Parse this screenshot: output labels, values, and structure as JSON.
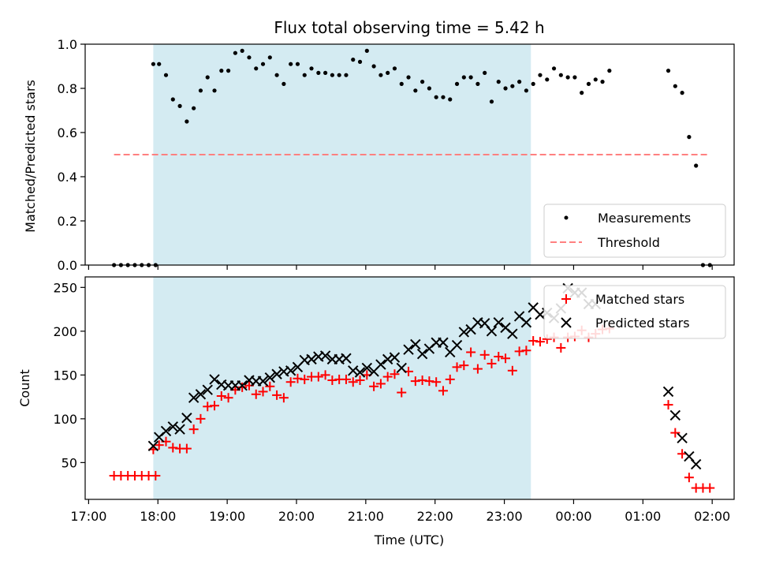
{
  "chart_data": [
    {
      "type": "scatter",
      "title": "Flux total observing time = 5.42 h",
      "ylabel": "Matched/Predicted stars",
      "xlabel": "",
      "x_axis": "time",
      "x_ticks": [
        "17:00",
        "18:00",
        "19:00",
        "20:00",
        "21:00",
        "22:00",
        "23:00",
        "00:00",
        "01:00",
        "02:00"
      ],
      "xlim": [
        "16:57",
        "02:19"
      ],
      "ylim": [
        0,
        1.0
      ],
      "y_ticks": [
        "0.0",
        "0.2",
        "0.4",
        "0.6",
        "0.8",
        "1.0"
      ],
      "shaded_span": [
        "17:56",
        "23:23"
      ],
      "legend_position": "lower right",
      "series": [
        {
          "name": "Measurements",
          "marker": "dot",
          "color": "#000000",
          "points": [
            [
              "17:22",
              0.0
            ],
            [
              "17:28",
              0.0
            ],
            [
              "17:34",
              0.0
            ],
            [
              "17:40",
              0.0
            ],
            [
              "17:46",
              0.0
            ],
            [
              "17:52",
              0.0
            ],
            [
              "17:58",
              0.0
            ],
            [
              "17:56",
              0.91
            ],
            [
              "18:01",
              0.91
            ],
            [
              "18:07",
              0.86
            ],
            [
              "18:13",
              0.75
            ],
            [
              "18:19",
              0.72
            ],
            [
              "18:25",
              0.65
            ],
            [
              "18:31",
              0.71
            ],
            [
              "18:37",
              0.79
            ],
            [
              "18:43",
              0.85
            ],
            [
              "18:49",
              0.79
            ],
            [
              "18:55",
              0.88
            ],
            [
              "19:01",
              0.88
            ],
            [
              "19:07",
              0.96
            ],
            [
              "19:13",
              0.97
            ],
            [
              "19:19",
              0.94
            ],
            [
              "19:25",
              0.89
            ],
            [
              "19:31",
              0.91
            ],
            [
              "19:37",
              0.94
            ],
            [
              "19:43",
              0.86
            ],
            [
              "19:49",
              0.82
            ],
            [
              "19:55",
              0.91
            ],
            [
              "20:01",
              0.91
            ],
            [
              "20:07",
              0.86
            ],
            [
              "20:13",
              0.89
            ],
            [
              "20:19",
              0.87
            ],
            [
              "20:25",
              0.87
            ],
            [
              "20:31",
              0.86
            ],
            [
              "20:37",
              0.86
            ],
            [
              "20:43",
              0.86
            ],
            [
              "20:49",
              0.93
            ],
            [
              "20:55",
              0.92
            ],
            [
              "21:01",
              0.97
            ],
            [
              "21:07",
              0.9
            ],
            [
              "21:13",
              0.86
            ],
            [
              "21:19",
              0.87
            ],
            [
              "21:25",
              0.89
            ],
            [
              "21:31",
              0.82
            ],
            [
              "21:37",
              0.85
            ],
            [
              "21:43",
              0.79
            ],
            [
              "21:49",
              0.83
            ],
            [
              "21:55",
              0.8
            ],
            [
              "22:01",
              0.76
            ],
            [
              "22:07",
              0.76
            ],
            [
              "22:13",
              0.75
            ],
            [
              "22:19",
              0.82
            ],
            [
              "22:25",
              0.85
            ],
            [
              "22:31",
              0.85
            ],
            [
              "22:37",
              0.82
            ],
            [
              "22:43",
              0.87
            ],
            [
              "22:49",
              0.74
            ],
            [
              "22:55",
              0.83
            ],
            [
              "23:01",
              0.8
            ],
            [
              "23:07",
              0.81
            ],
            [
              "23:13",
              0.83
            ],
            [
              "23:19",
              0.79
            ],
            [
              "23:25",
              0.82
            ],
            [
              "23:31",
              0.86
            ],
            [
              "23:37",
              0.84
            ],
            [
              "23:43",
              0.89
            ],
            [
              "23:49",
              0.86
            ],
            [
              "23:55",
              0.85
            ],
            [
              "24:01",
              0.85
            ],
            [
              "24:07",
              0.78
            ],
            [
              "24:13",
              0.82
            ],
            [
              "24:19",
              0.84
            ],
            [
              "24:25",
              0.83
            ],
            [
              "24:31",
              0.88
            ],
            [
              "25:22",
              0.88
            ],
            [
              "25:28",
              0.81
            ],
            [
              "25:34",
              0.78
            ],
            [
              "25:40",
              0.58
            ],
            [
              "25:46",
              0.45
            ],
            [
              "25:52",
              0.0
            ],
            [
              "25:58",
              0.0
            ]
          ]
        },
        {
          "name": "Threshold",
          "marker": "dashed-line",
          "color": "#ff8080",
          "points": [
            [
              "17:22",
              0.5
            ],
            [
              "25:58",
              0.5
            ]
          ]
        }
      ]
    },
    {
      "type": "scatter",
      "title": "",
      "ylabel": "Count",
      "xlabel": "Time (UTC)",
      "x_axis": "time",
      "x_ticks": [
        "17:00",
        "18:00",
        "19:00",
        "20:00",
        "21:00",
        "22:00",
        "23:00",
        "00:00",
        "01:00",
        "02:00"
      ],
      "xlim": [
        "16:57",
        "02:19"
      ],
      "ylim": [
        8,
        262
      ],
      "y_ticks": [
        "50",
        "100",
        "150",
        "200",
        "250"
      ],
      "shaded_span": [
        "17:56",
        "23:23"
      ],
      "legend_position": "upper right",
      "series": [
        {
          "name": "Matched stars",
          "marker": "plus",
          "color": "#ff0000",
          "points": [
            [
              "17:22",
              35
            ],
            [
              "17:28",
              35
            ],
            [
              "17:34",
              35
            ],
            [
              "17:40",
              35
            ],
            [
              "17:46",
              35
            ],
            [
              "17:52",
              35
            ],
            [
              "17:58",
              35
            ],
            [
              "17:56",
              65
            ],
            [
              "18:01",
              70
            ],
            [
              "18:07",
              74
            ],
            [
              "18:13",
              67
            ],
            [
              "18:19",
              66
            ],
            [
              "18:25",
              66
            ],
            [
              "18:31",
              88
            ],
            [
              "18:37",
              100
            ],
            [
              "18:43",
              114
            ],
            [
              "18:49",
              115
            ],
            [
              "18:55",
              126
            ],
            [
              "19:01",
              124
            ],
            [
              "19:07",
              133
            ],
            [
              "19:13",
              136
            ],
            [
              "19:19",
              138
            ],
            [
              "19:25",
              128
            ],
            [
              "19:31",
              131
            ],
            [
              "19:37",
              137
            ],
            [
              "19:43",
              127
            ],
            [
              "19:49",
              124
            ],
            [
              "19:55",
              142
            ],
            [
              "20:01",
              146
            ],
            [
              "20:07",
              145
            ],
            [
              "20:13",
              148
            ],
            [
              "20:19",
              148
            ],
            [
              "20:25",
              150
            ],
            [
              "20:31",
              144
            ],
            [
              "20:37",
              145
            ],
            [
              "20:43",
              145
            ],
            [
              "20:49",
              142
            ],
            [
              "20:55",
              144
            ],
            [
              "21:01",
              150
            ],
            [
              "21:07",
              137
            ],
            [
              "21:13",
              140
            ],
            [
              "21:19",
              148
            ],
            [
              "21:25",
              151
            ],
            [
              "21:31",
              130
            ],
            [
              "21:37",
              154
            ],
            [
              "21:43",
              143
            ],
            [
              "21:49",
              144
            ],
            [
              "21:55",
              143
            ],
            [
              "22:01",
              142
            ],
            [
              "22:07",
              132
            ],
            [
              "22:13",
              145
            ],
            [
              "22:19",
              159
            ],
            [
              "22:25",
              161
            ],
            [
              "22:31",
              176
            ],
            [
              "22:37",
              157
            ],
            [
              "22:43",
              173
            ],
            [
              "22:49",
              163
            ],
            [
              "22:55",
              171
            ],
            [
              "23:01",
              169
            ],
            [
              "23:07",
              155
            ],
            [
              "23:13",
              177
            ],
            [
              "23:19",
              178
            ],
            [
              "23:25",
              189
            ],
            [
              "23:31",
              188
            ],
            [
              "23:37",
              191
            ],
            [
              "23:43",
              193
            ],
            [
              "23:49",
              181
            ],
            [
              "23:55",
              193
            ],
            [
              "24:01",
              194
            ],
            [
              "24:07",
              201
            ],
            [
              "24:13",
              193
            ],
            [
              "24:19",
              197
            ],
            [
              "24:25",
              202
            ],
            [
              "24:31",
              203
            ],
            [
              "25:22",
              116
            ],
            [
              "25:28",
              84
            ],
            [
              "25:34",
              60
            ],
            [
              "25:40",
              33
            ],
            [
              "25:46",
              21
            ],
            [
              "25:52",
              21
            ],
            [
              "25:58",
              21
            ]
          ]
        },
        {
          "name": "Predicted stars",
          "marker": "x",
          "color": "#000000",
          "points": [
            [
              "17:56",
              69
            ],
            [
              "18:01",
              79
            ],
            [
              "18:07",
              86
            ],
            [
              "18:13",
              91
            ],
            [
              "18:19",
              88
            ],
            [
              "18:25",
              101
            ],
            [
              "18:31",
              124
            ],
            [
              "18:37",
              128
            ],
            [
              "18:43",
              133
            ],
            [
              "18:49",
              145
            ],
            [
              "18:55",
              139
            ],
            [
              "19:01",
              138
            ],
            [
              "19:07",
              138
            ],
            [
              "19:13",
              138
            ],
            [
              "19:19",
              144
            ],
            [
              "19:25",
              143
            ],
            [
              "19:31",
              143
            ],
            [
              "19:37",
              147
            ],
            [
              "19:43",
              151
            ],
            [
              "19:49",
              154
            ],
            [
              "19:55",
              155
            ],
            [
              "20:01",
              159
            ],
            [
              "20:07",
              167
            ],
            [
              "20:13",
              168
            ],
            [
              "20:19",
              171
            ],
            [
              "20:25",
              172
            ],
            [
              "20:31",
              168
            ],
            [
              "20:37",
              168
            ],
            [
              "20:43",
              169
            ],
            [
              "20:49",
              155
            ],
            [
              "20:55",
              153
            ],
            [
              "21:01",
              158
            ],
            [
              "21:07",
              154
            ],
            [
              "21:13",
              162
            ],
            [
              "21:19",
              168
            ],
            [
              "21:25",
              170
            ],
            [
              "21:31",
              158
            ],
            [
              "21:37",
              179
            ],
            [
              "21:43",
              185
            ],
            [
              "21:49",
              174
            ],
            [
              "21:55",
              180
            ],
            [
              "22:01",
              187
            ],
            [
              "22:07",
              187
            ],
            [
              "22:13",
              176
            ],
            [
              "22:19",
              184
            ],
            [
              "22:25",
              199
            ],
            [
              "22:31",
              202
            ],
            [
              "22:37",
              210
            ],
            [
              "22:43",
              209
            ],
            [
              "22:49",
              200
            ],
            [
              "22:55",
              210
            ],
            [
              "23:01",
              204
            ],
            [
              "23:07",
              197
            ],
            [
              "23:13",
              217
            ],
            [
              "23:19",
              210
            ],
            [
              "23:25",
              227
            ],
            [
              "23:31",
              219
            ],
            [
              "23:37",
              221
            ],
            [
              "23:43",
              215
            ],
            [
              "23:49",
              226
            ],
            [
              "23:55",
              249
            ],
            [
              "24:01",
              244
            ],
            [
              "24:07",
              244
            ],
            [
              "24:13",
              231
            ],
            [
              "24:19",
              231
            ],
            [
              "25:22",
              131
            ],
            [
              "25:28",
              104
            ],
            [
              "25:34",
              78
            ],
            [
              "25:40",
              57
            ],
            [
              "25:46",
              48
            ]
          ]
        }
      ]
    }
  ],
  "legend_top": [
    "Measurements",
    "Threshold"
  ],
  "legend_bottom": [
    "Matched stars",
    "Predicted stars"
  ]
}
